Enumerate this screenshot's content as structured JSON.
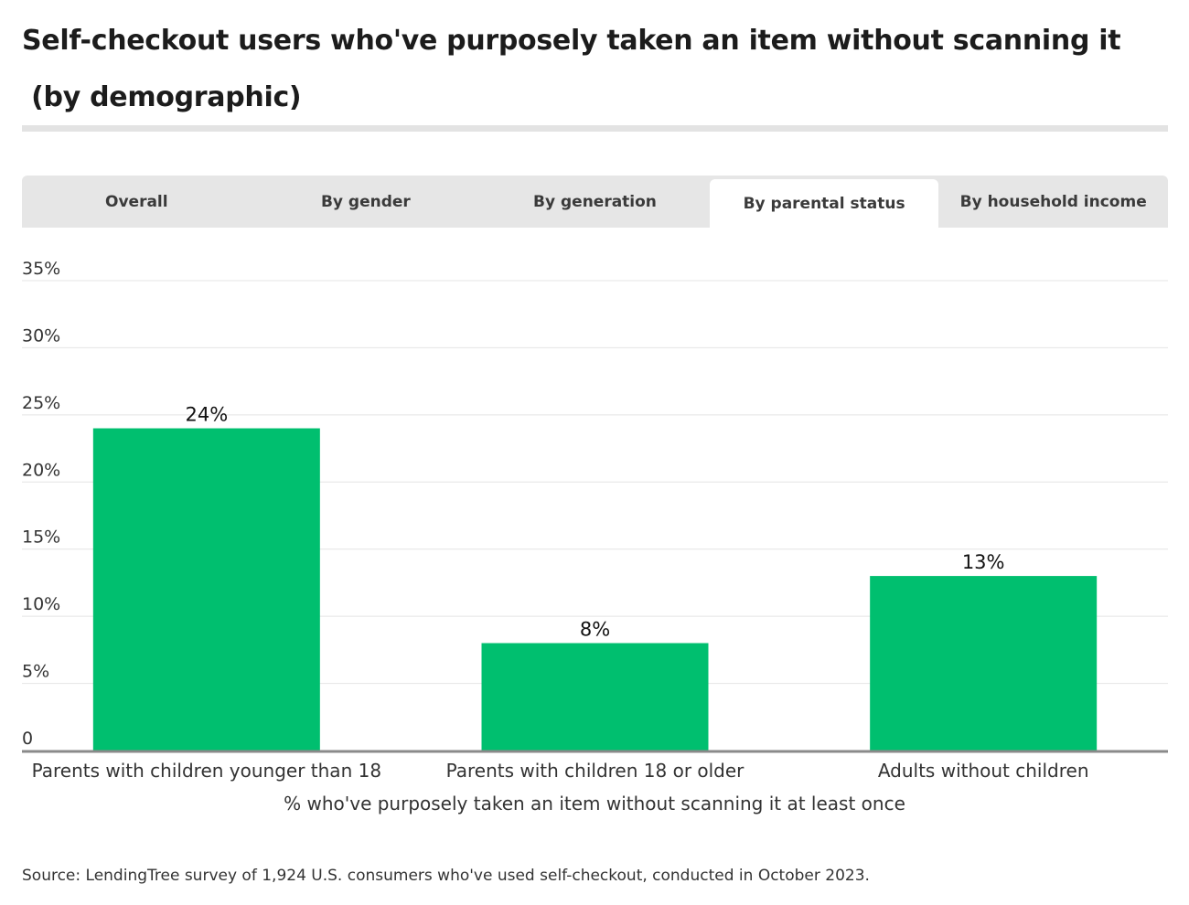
{
  "title": {
    "line1": "Self-checkout users who've purposely taken an item without scanning it",
    "line2": " (by demographic)"
  },
  "tabs": [
    {
      "label": "Overall",
      "active": false
    },
    {
      "label": "By gender",
      "active": false
    },
    {
      "label": "By generation",
      "active": false
    },
    {
      "label": "By parental status",
      "active": true
    },
    {
      "label": "By household income",
      "active": false
    }
  ],
  "chart_data": {
    "type": "bar",
    "categories": [
      "Parents with children younger than 18",
      "Parents with children 18 or older",
      "Adults without children"
    ],
    "values": [
      24,
      8,
      13
    ],
    "data_labels": [
      "24%",
      "8%",
      "13%"
    ],
    "xlabel": "% who've purposely taken an item without scanning it at least once",
    "ylabel": "",
    "ylim": [
      0,
      35
    ],
    "yticks": [
      0,
      5,
      10,
      15,
      20,
      25,
      30,
      35
    ],
    "ytick_labels": [
      "0",
      "5%",
      "10%",
      "15%",
      "20%",
      "25%",
      "30%",
      "35%"
    ],
    "grid": true,
    "bar_color": "#00bf6f"
  },
  "source": "Source: LendingTree survey of 1,924 U.S. consumers who've used self-checkout, conducted in October 2023."
}
